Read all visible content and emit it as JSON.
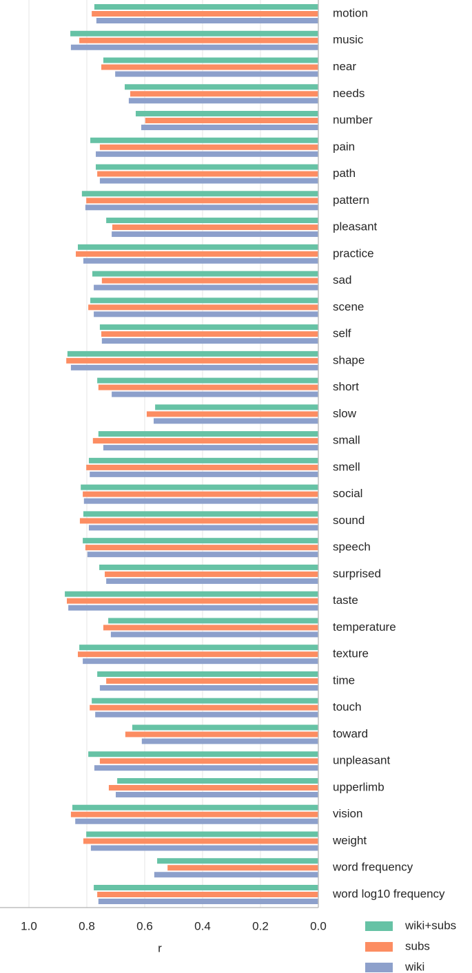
{
  "chart_data": {
    "type": "barh",
    "x_label": "r",
    "categories": [
      "motion",
      "music",
      "near",
      "needs",
      "number",
      "pain",
      "path",
      "pattern",
      "pleasant",
      "practice",
      "sad",
      "scene",
      "self",
      "shape",
      "short",
      "slow",
      "small",
      "smell",
      "social",
      "sound",
      "speech",
      "surprised",
      "taste",
      "temperature",
      "texture",
      "time",
      "touch",
      "toward",
      "unpleasant",
      "upperlimb",
      "vision",
      "weight",
      "word frequency",
      "word log10 frequency"
    ],
    "series": [
      {
        "name": "wiki+subs",
        "color": "#66c2a5",
        "values": [
          0.774,
          0.857,
          0.743,
          0.669,
          0.631,
          0.788,
          0.769,
          0.817,
          0.733,
          0.831,
          0.781,
          0.788,
          0.755,
          0.867,
          0.764,
          0.564,
          0.76,
          0.793,
          0.821,
          0.812,
          0.814,
          0.757,
          0.876,
          0.726,
          0.826,
          0.764,
          0.783,
          0.643,
          0.795,
          0.695,
          0.85,
          0.802,
          0.557,
          0.776
        ]
      },
      {
        "name": "subs",
        "color": "#fc8d62",
        "values": [
          0.783,
          0.826,
          0.75,
          0.65,
          0.598,
          0.755,
          0.764,
          0.802,
          0.712,
          0.838,
          0.748,
          0.795,
          0.75,
          0.871,
          0.76,
          0.593,
          0.779,
          0.802,
          0.814,
          0.824,
          0.805,
          0.738,
          0.869,
          0.743,
          0.831,
          0.733,
          0.79,
          0.667,
          0.755,
          0.724,
          0.855,
          0.812,
          0.521,
          0.764
        ]
      },
      {
        "name": "wiki",
        "color": "#8da0cb",
        "values": [
          0.767,
          0.855,
          0.702,
          0.655,
          0.612,
          0.769,
          0.755,
          0.805,
          0.714,
          0.812,
          0.776,
          0.776,
          0.748,
          0.855,
          0.714,
          0.569,
          0.743,
          0.79,
          0.81,
          0.793,
          0.798,
          0.733,
          0.864,
          0.717,
          0.814,
          0.755,
          0.771,
          0.61,
          0.774,
          0.7,
          0.84,
          0.786,
          0.567,
          0.76
        ]
      }
    ],
    "xlim": [
      1.1,
      0
    ],
    "xticks": [
      {
        "value": 1,
        "label": "1.0"
      },
      0.8,
      0.6,
      0.4,
      0.2,
      {
        "value": 0,
        "label": "0.0"
      }
    ],
    "grid": true,
    "legend": "lower right"
  }
}
